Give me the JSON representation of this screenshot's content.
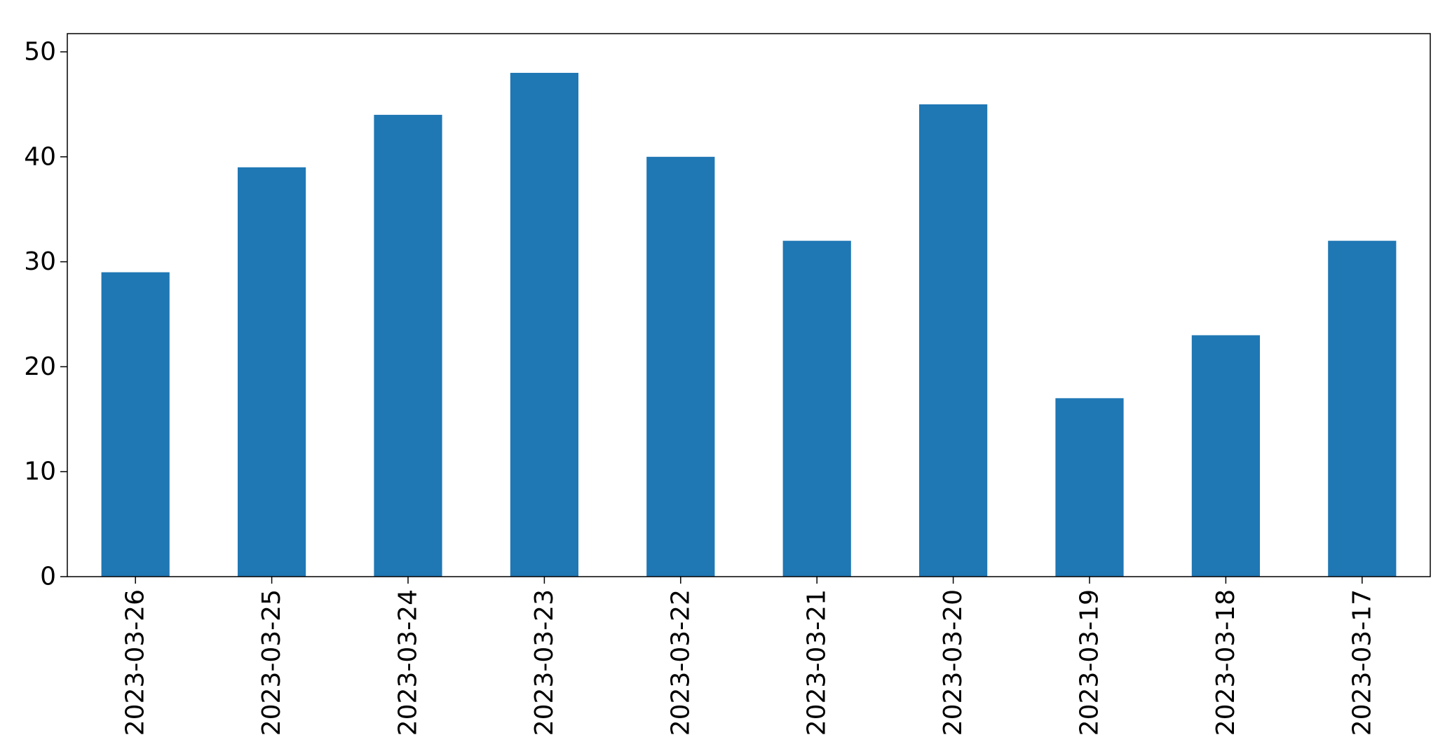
{
  "chart_data": {
    "type": "bar",
    "categories": [
      "2023-03-26",
      "2023-03-25",
      "2023-03-24",
      "2023-03-23",
      "2023-03-22",
      "2023-03-21",
      "2023-03-20",
      "2023-03-19",
      "2023-03-18",
      "2023-03-17"
    ],
    "values": [
      29,
      39,
      44,
      48,
      40,
      32,
      45,
      17,
      23,
      32
    ],
    "ylim": [
      0,
      50
    ],
    "yticks": [
      0,
      10,
      20,
      30,
      40,
      50
    ],
    "xlabel": "",
    "ylabel": "",
    "grid": false,
    "bar_color": "#1f77b4",
    "x_tick_rotation": "vertical"
  }
}
